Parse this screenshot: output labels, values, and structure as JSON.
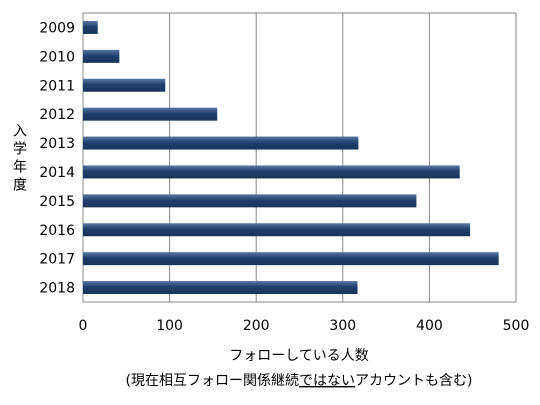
{
  "chart_data": {
    "type": "bar",
    "orientation": "horizontal",
    "categories": [
      "2009",
      "2010",
      "2011",
      "2012",
      "2013",
      "2014",
      "2015",
      "2016",
      "2017",
      "2018"
    ],
    "values": [
      17,
      42,
      95,
      155,
      318,
      435,
      385,
      447,
      480,
      317
    ],
    "bar_color": "#1f3f6e",
    "bar_highlight_color": "#5a78a4",
    "xlim": [
      0,
      500
    ],
    "x_ticks": [
      0,
      100,
      200,
      300,
      400,
      500
    ],
    "grid": true,
    "legend": "none",
    "ylabel": "入学年度",
    "xlabel": {
      "line1": "フォローしている人数",
      "line2_prefix": "(現在相互フォロー関係継続",
      "line2_underlined": "ではない",
      "line2_suffix": "アカウントも含む)"
    }
  }
}
